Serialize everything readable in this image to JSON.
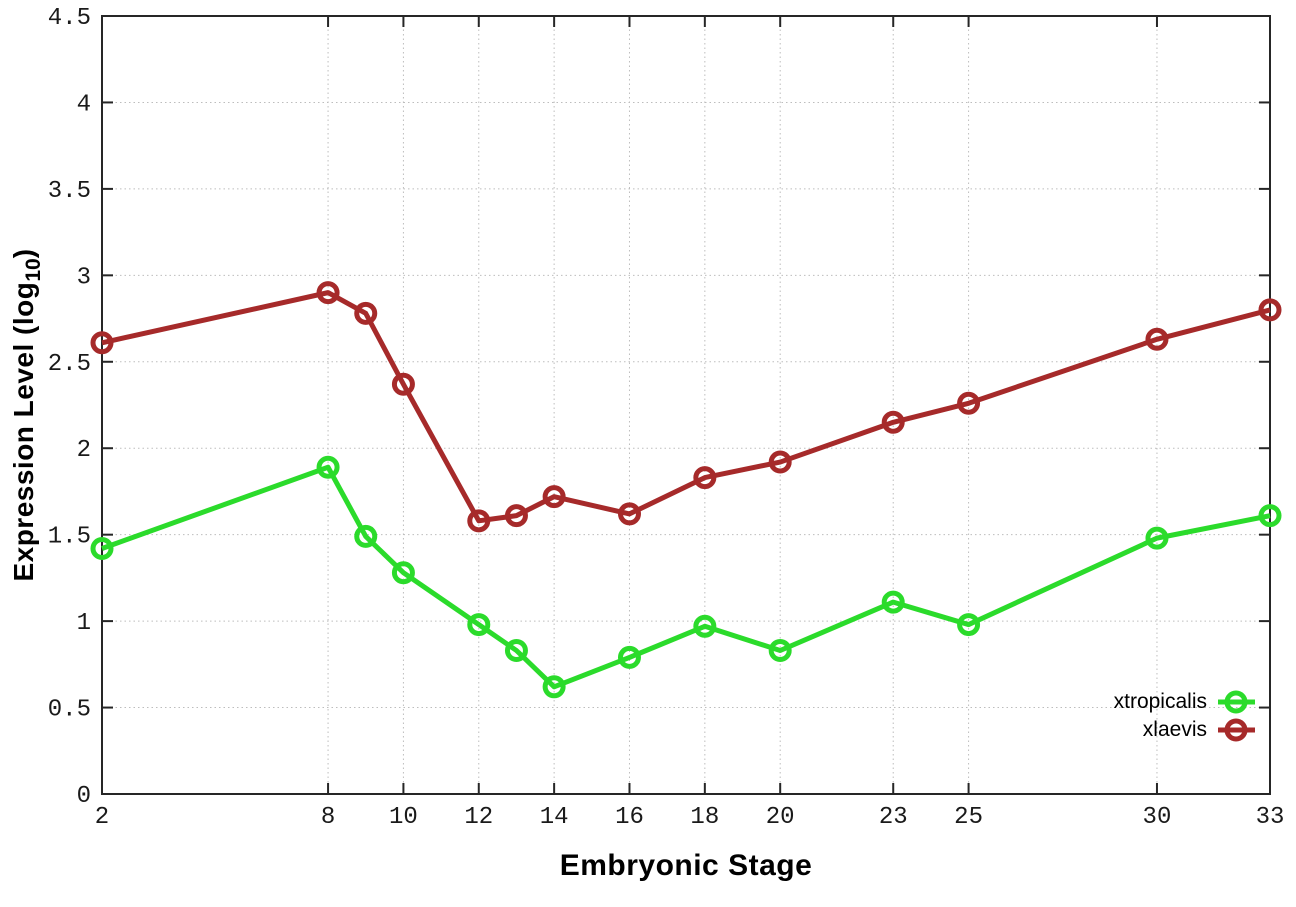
{
  "figure": {
    "background": "#ffffff",
    "border_color": "#262626",
    "grid_color": "#bdbdbd",
    "tick_label_color": "#1a1a1a"
  },
  "axes": {
    "x_title": "Embryonic Stage",
    "y_title_main": "Expression Level (log",
    "y_title_subscript": "10",
    "y_title_close": ")"
  },
  "chart_data": {
    "type": "line",
    "title": "",
    "xlabel": "Embryonic Stage",
    "ylabel": "Expression Level (log10)",
    "xlim": [
      2,
      33
    ],
    "ylim": [
      0,
      4.5
    ],
    "grid": true,
    "legend_position": "bottom-right",
    "x_ticks": [
      2,
      8,
      10,
      12,
      14,
      16,
      18,
      20,
      23,
      25,
      30,
      33
    ],
    "x_tick_labels": [
      "2",
      "8",
      "10",
      "12",
      "14",
      "16",
      "18",
      "20",
      "23",
      "25",
      "30",
      "33"
    ],
    "y_ticks": [
      0,
      0.5,
      1,
      1.5,
      2,
      2.5,
      3,
      3.5,
      4,
      4.5
    ],
    "y_tick_labels": [
      "0",
      "0.5",
      "1",
      "1.5",
      "2",
      "2.5",
      "3",
      "3.5",
      "4",
      "4.5"
    ],
    "x": [
      2,
      8,
      9,
      10,
      12,
      13,
      14,
      16,
      18,
      20,
      23,
      25,
      30,
      33
    ],
    "series": [
      {
        "name": "xtropicalis",
        "color": "#2bdb2b",
        "marker": "open-circle",
        "values": [
          1.42,
          1.89,
          1.49,
          1.28,
          0.98,
          0.83,
          0.62,
          0.79,
          0.97,
          0.83,
          1.11,
          0.98,
          1.48,
          1.61
        ]
      },
      {
        "name": "xlaevis",
        "color": "#a62a2a",
        "marker": "open-circle",
        "values": [
          2.61,
          2.9,
          2.78,
          2.37,
          1.58,
          1.61,
          1.72,
          1.62,
          1.83,
          1.92,
          2.15,
          2.26,
          2.63,
          2.8
        ]
      }
    ]
  }
}
